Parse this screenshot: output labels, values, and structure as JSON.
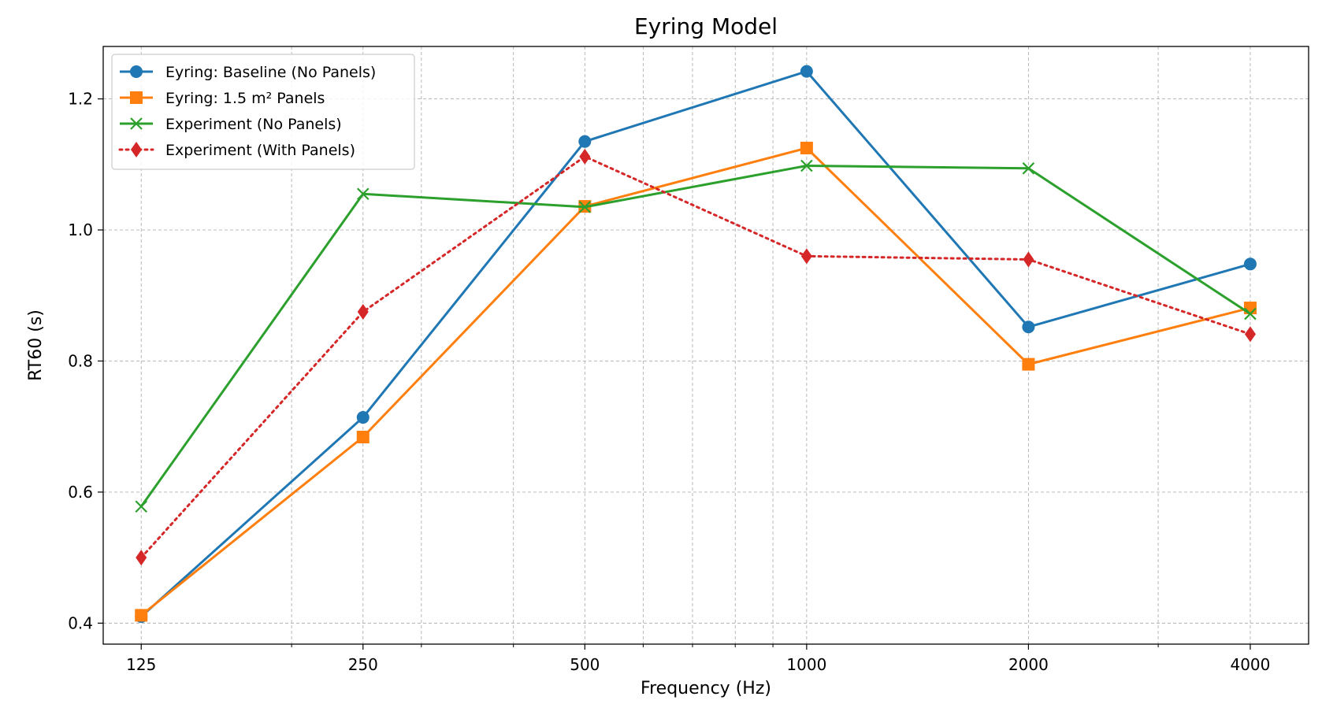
{
  "chart_data": {
    "type": "line",
    "title": "Eyring Model",
    "xlabel": "Frequency (Hz)",
    "ylabel": "RT60 (s)",
    "x_scale": "log2",
    "x": [
      125,
      250,
      500,
      1000,
      2000,
      4000
    ],
    "x_tick_labels": [
      "125",
      "250",
      "500",
      "1000",
      "2000",
      "4000"
    ],
    "xlim": [
      111,
      4800
    ],
    "ylim": [
      0.368,
      1.28
    ],
    "y_ticks": [
      0.4,
      0.6,
      0.8,
      1.0,
      1.2
    ],
    "y_tick_labels": [
      "0.4",
      "0.6",
      "0.8",
      "1.0",
      "1.2"
    ],
    "grid": true,
    "legend_position": "upper-left",
    "series": [
      {
        "name": "Eyring: Baseline (No Panels)",
        "color": "#1f77b4",
        "marker": "circle",
        "line_style": "solid",
        "values": [
          0.41,
          0.714,
          1.135,
          1.242,
          0.852,
          0.948
        ]
      },
      {
        "name": "Eyring: 1.5 m² Panels",
        "color": "#ff7f0e",
        "marker": "square",
        "line_style": "solid",
        "values": [
          0.412,
          0.684,
          1.036,
          1.125,
          0.795,
          0.881
        ]
      },
      {
        "name": "Experiment (No Panels)",
        "color": "#2ca02c",
        "marker": "x",
        "line_style": "solid",
        "values": [
          0.578,
          1.055,
          1.035,
          1.098,
          1.094,
          0.872
        ]
      },
      {
        "name": "Experiment (With Panels)",
        "color": "#d62728",
        "marker": "diamond",
        "line_style": "dotted",
        "values": [
          0.5,
          0.875,
          1.112,
          0.96,
          0.955,
          0.841
        ]
      }
    ]
  }
}
